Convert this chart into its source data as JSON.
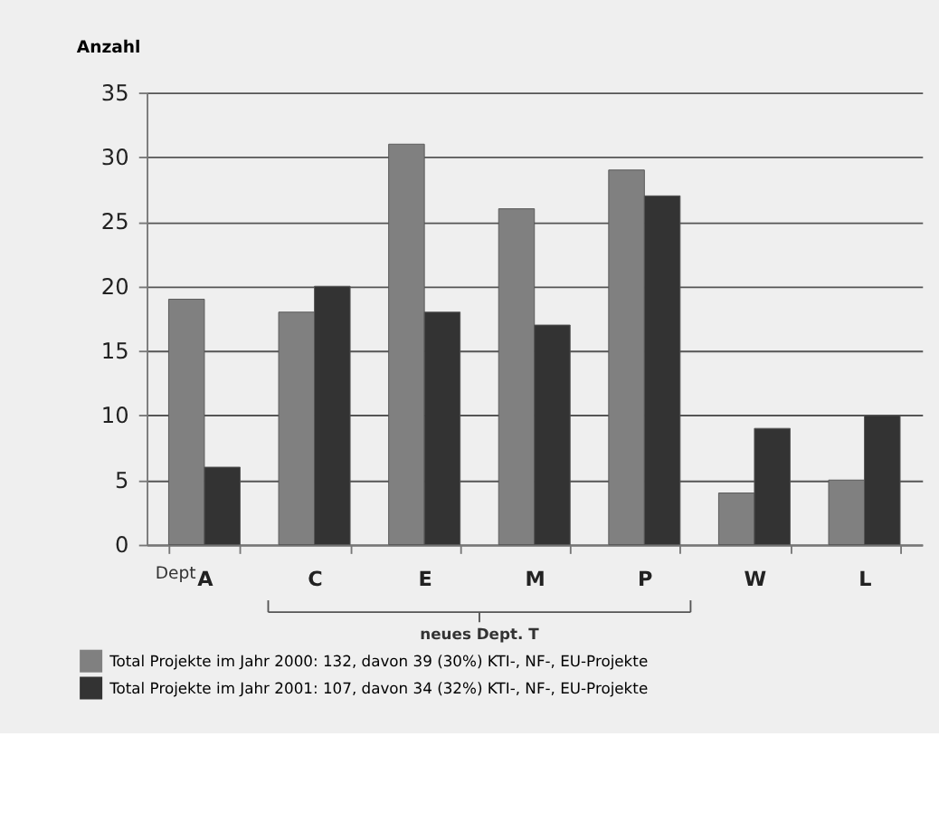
{
  "chart_data": {
    "type": "bar",
    "ylabel": "Anzahl",
    "categories": [
      "A",
      "C",
      "E",
      "M",
      "P",
      "W",
      "L"
    ],
    "series": [
      {
        "name": "Total Projekte im Jahr 2000: 132, davon 39 (30%) KTI-, NF-, EU-Projekte",
        "color": "#808080",
        "values": [
          19,
          18,
          31,
          26,
          29,
          4,
          5
        ]
      },
      {
        "name": "Total Projekte im Jahr 2001: 107, davon 34 (32%) KTI-, NF-, EU-Projekte",
        "color": "#333333",
        "values": [
          6,
          20,
          18,
          17,
          27,
          9,
          10
        ]
      }
    ],
    "ylim": [
      0,
      35
    ],
    "yticks": [
      0,
      5,
      10,
      15,
      20,
      25,
      30,
      35
    ],
    "grid": "y",
    "legend": "bottom left",
    "annotations": [
      "Dept",
      "neues Dept. T"
    ]
  }
}
